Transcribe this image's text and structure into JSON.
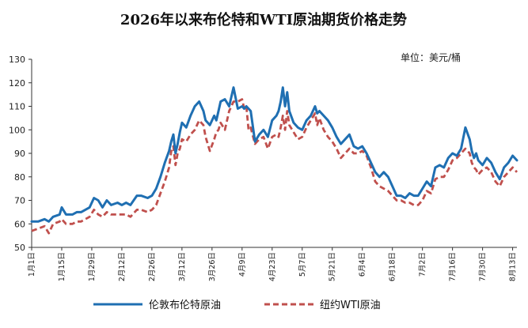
{
  "chart_data": {
    "type": "line",
    "title": "2026年以来布伦特和WTI原油期货价格走势",
    "unit_label": "单位：美元/桶",
    "ylim": [
      50,
      130
    ],
    "yticks": [
      50,
      60,
      70,
      80,
      90,
      100,
      110,
      120,
      130
    ],
    "grid": false,
    "legend_position": "bottom",
    "x_range": [
      1,
      227
    ],
    "xticks": [
      {
        "x": 1,
        "label": "1月1日"
      },
      {
        "x": 15,
        "label": "1月15日"
      },
      {
        "x": 29,
        "label": "1月29日"
      },
      {
        "x": 43,
        "label": "2月12日"
      },
      {
        "x": 57,
        "label": "2月26日"
      },
      {
        "x": 71,
        "label": "3月12日"
      },
      {
        "x": 85,
        "label": "3月26日"
      },
      {
        "x": 99,
        "label": "4月9日"
      },
      {
        "x": 113,
        "label": "4月23日"
      },
      {
        "x": 127,
        "label": "5月7日"
      },
      {
        "x": 141,
        "label": "5月21日"
      },
      {
        "x": 155,
        "label": "6月4日"
      },
      {
        "x": 169,
        "label": "6月18日"
      },
      {
        "x": 183,
        "label": "7月2日"
      },
      {
        "x": 197,
        "label": "7月16日"
      },
      {
        "x": 211,
        "label": "7月30日"
      },
      {
        "x": 225,
        "label": "8月13日"
      }
    ],
    "series": [
      {
        "name": "伦敦布伦特原油",
        "color": "#1f6fb2",
        "style": "solid",
        "x": [
          1,
          4,
          7,
          9,
          11,
          14,
          15,
          17,
          20,
          22,
          24,
          26,
          28,
          30,
          32,
          34,
          36,
          38,
          41,
          43,
          45,
          47,
          50,
          52,
          55,
          57,
          59,
          61,
          63,
          65,
          66,
          67,
          68,
          69,
          70,
          71,
          73,
          75,
          77,
          79,
          81,
          82,
          84,
          86,
          87,
          88,
          89,
          91,
          93,
          95,
          97,
          99,
          100,
          101,
          102,
          103,
          105,
          107,
          109,
          111,
          113,
          115,
          116,
          117,
          118,
          119,
          120,
          121,
          123,
          125,
          127,
          129,
          131,
          133,
          134,
          135,
          137,
          139,
          141,
          143,
          145,
          147,
          149,
          151,
          153,
          155,
          157,
          159,
          161,
          163,
          165,
          167,
          169,
          171,
          173,
          175,
          177,
          179,
          181,
          183,
          185,
          187,
          189,
          191,
          193,
          195,
          197,
          199,
          201,
          203,
          205,
          206,
          207,
          208,
          209,
          211,
          213,
          215,
          217,
          219,
          221,
          223,
          225,
          227
        ],
        "values": [
          61,
          61,
          62,
          61,
          63,
          64,
          67,
          64,
          64,
          65,
          65,
          66,
          67,
          71,
          70,
          67,
          70,
          68,
          69,
          68,
          69,
          68,
          72,
          72,
          71,
          72,
          75,
          80,
          86,
          91,
          95,
          98,
          90,
          94,
          99,
          103,
          101,
          106,
          110,
          112,
          108,
          104,
          102,
          106,
          104,
          108,
          112,
          113,
          110,
          118,
          109,
          110,
          109,
          110,
          109,
          108,
          95,
          98,
          100,
          97,
          104,
          106,
          108,
          112,
          118,
          110,
          116,
          108,
          103,
          101,
          100,
          104,
          106,
          110,
          107,
          108,
          106,
          104,
          101,
          97,
          94,
          96,
          98,
          93,
          92,
          93,
          90,
          86,
          82,
          80,
          82,
          80,
          76,
          72,
          72,
          71,
          73,
          72,
          72,
          75,
          78,
          76,
          84,
          85,
          84,
          88,
          90,
          89,
          92,
          101,
          96,
          91,
          88,
          90,
          87,
          85,
          88,
          86,
          82,
          79,
          84,
          86,
          89,
          87
        ]
      },
      {
        "name": "纽约WTI原油",
        "color": "#c0504d",
        "style": "dashed",
        "x": [
          1,
          4,
          7,
          9,
          11,
          14,
          15,
          17,
          20,
          22,
          24,
          26,
          28,
          30,
          32,
          34,
          36,
          38,
          41,
          43,
          45,
          47,
          50,
          52,
          55,
          57,
          59,
          61,
          63,
          65,
          66,
          67,
          68,
          69,
          70,
          71,
          73,
          75,
          77,
          79,
          81,
          82,
          84,
          86,
          87,
          88,
          89,
          91,
          93,
          95,
          97,
          99,
          100,
          101,
          102,
          103,
          105,
          107,
          109,
          111,
          113,
          115,
          116,
          117,
          118,
          119,
          120,
          121,
          123,
          125,
          127,
          129,
          131,
          133,
          134,
          135,
          137,
          139,
          141,
          143,
          145,
          147,
          149,
          151,
          153,
          155,
          157,
          159,
          161,
          163,
          165,
          167,
          169,
          171,
          173,
          175,
          177,
          179,
          181,
          183,
          185,
          187,
          189,
          191,
          193,
          195,
          197,
          199,
          201,
          203,
          205,
          206,
          207,
          208,
          209,
          211,
          213,
          215,
          217,
          219,
          221,
          223,
          225,
          227
        ],
        "values": [
          57,
          58,
          59,
          56,
          60,
          61,
          62,
          60,
          60,
          61,
          61,
          62,
          63,
          66,
          64,
          63,
          65,
          64,
          64,
          64,
          64,
          63,
          66,
          66,
          65,
          66,
          68,
          73,
          78,
          84,
          91,
          93,
          85,
          90,
          92,
          96,
          95,
          98,
          100,
          104,
          102,
          97,
          91,
          96,
          99,
          100,
          103,
          100,
          108,
          112,
          112,
          113,
          109,
          110,
          100,
          101,
          94,
          96,
          97,
          92,
          97,
          98,
          97,
          101,
          106,
          100,
          108,
          102,
          99,
          96,
          97,
          101,
          104,
          107,
          102,
          105,
          100,
          97,
          95,
          92,
          88,
          90,
          92,
          90,
          90,
          91,
          89,
          84,
          78,
          76,
          75,
          74,
          72,
          70,
          70,
          69,
          69,
          68,
          68,
          70,
          74,
          73,
          79,
          80,
          80,
          83,
          87,
          88,
          90,
          92,
          90,
          86,
          84,
          83,
          81,
          83,
          84,
          82,
          78,
          76,
          80,
          82,
          84,
          82
        ]
      }
    ]
  }
}
